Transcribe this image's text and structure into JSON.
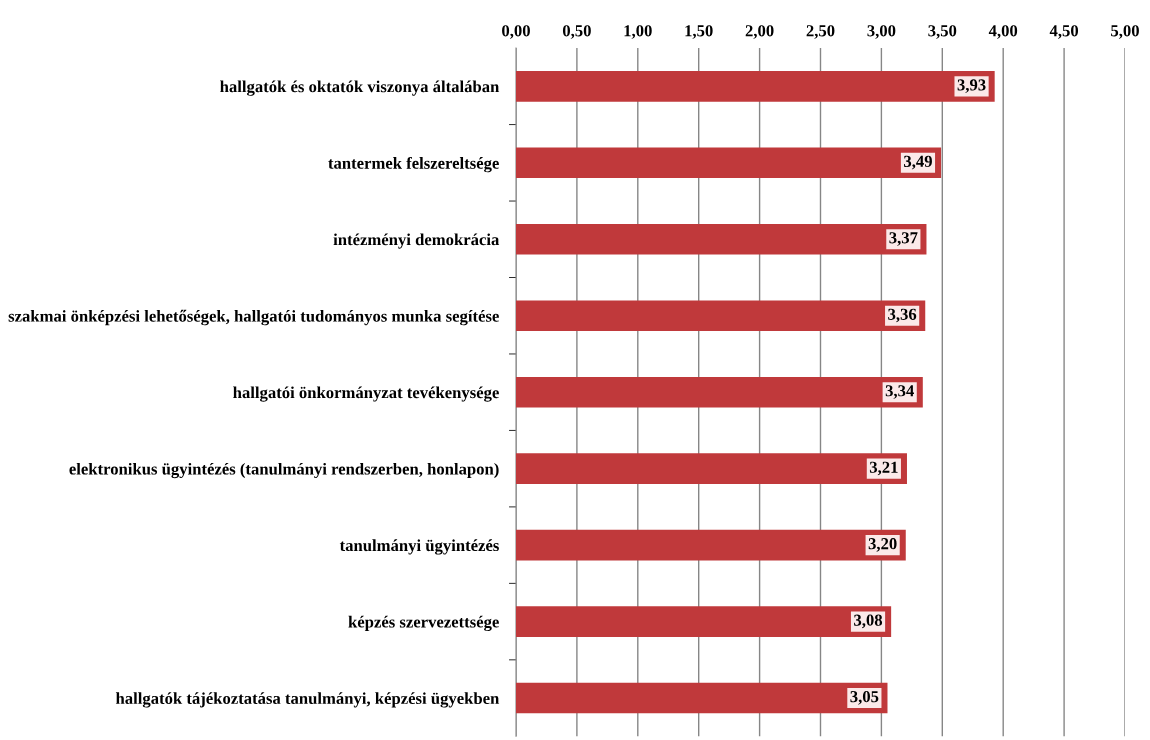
{
  "chart_data": {
    "type": "bar",
    "orientation": "horizontal",
    "categories": [
      "hallgatók és oktatók viszonya általában",
      "tantermek felszereltsége",
      "intézményi demokrácia",
      "szakmai önképzési lehetőségek, hallgatói tudományos munka segítése",
      "hallgatói önkormányzat tevékenysége",
      "elektronikus ügyintézés (tanulmányi rendszerben, honlapon)",
      "tanulmányi ügyintézés",
      "képzés szervezettsége",
      "hallgatók tájékoztatása tanulmányi, képzési ügyekben"
    ],
    "values": [
      3.93,
      3.49,
      3.37,
      3.36,
      3.34,
      3.21,
      3.2,
      3.08,
      3.05
    ],
    "value_labels": [
      "3,93",
      "3,49",
      "3,37",
      "3,36",
      "3,34",
      "3,21",
      "3,20",
      "3,08",
      "3,05"
    ],
    "color": "#c0393b",
    "xlim": [
      0,
      5
    ],
    "xticks": [
      {
        "value": 0,
        "label": "0,00"
      },
      {
        "value": 0.5,
        "label": "0,50"
      },
      {
        "value": 1,
        "label": "1,00"
      },
      {
        "value": 1.5,
        "label": "1,50"
      },
      {
        "value": 2,
        "label": "2,00"
      },
      {
        "value": 2.5,
        "label": "2,50"
      },
      {
        "value": 3,
        "label": "3,00"
      },
      {
        "value": 3.5,
        "label": "3,50"
      },
      {
        "value": 4,
        "label": "4,00"
      },
      {
        "value": 4.5,
        "label": "4,50"
      },
      {
        "value": 5,
        "label": "5,00"
      }
    ],
    "grid": "x"
  }
}
